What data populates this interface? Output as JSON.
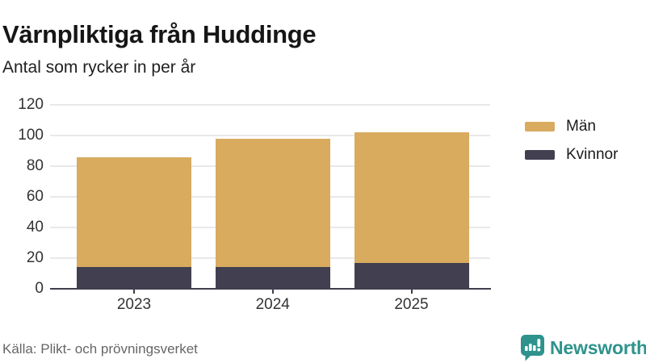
{
  "header": {
    "title": "Värnpliktiga från Huddinge",
    "subtitle": "Antal som rycker in per år"
  },
  "chart_data": {
    "type": "bar",
    "stacked": true,
    "title": "Värnpliktiga från Huddinge",
    "subtitle": "Antal som rycker in per år",
    "categories": [
      "2023",
      "2024",
      "2025"
    ],
    "series": [
      {
        "name": "Män",
        "color": "#d8ab5f",
        "values": [
          72,
          84,
          85
        ]
      },
      {
        "name": "Kvinnor",
        "color": "#424050",
        "values": [
          14,
          14,
          17
        ]
      }
    ],
    "stack_totals": [
      86,
      98,
      102
    ],
    "ylim": [
      0,
      120
    ],
    "yticks": [
      0,
      20,
      40,
      60,
      80,
      100,
      120
    ],
    "grid": true,
    "legend_position": "right",
    "legend_order": [
      "Män",
      "Kvinnor"
    ]
  },
  "footer": {
    "source": "Källa: Plikt- och prövningsverket",
    "brand": "Newsworthy"
  },
  "colors": {
    "men_gold": "#d8ab5f",
    "women_dark": "#424050",
    "axis": "#3f3e4e",
    "gridline": "#e8e8e8",
    "brand_teal": "#2e938c",
    "text_dark": "#161616",
    "text_label": "#333333",
    "text_source": "#666666"
  },
  "icons": {
    "brand_logo": "newsworthy-bar-chart-speech-bubble"
  }
}
